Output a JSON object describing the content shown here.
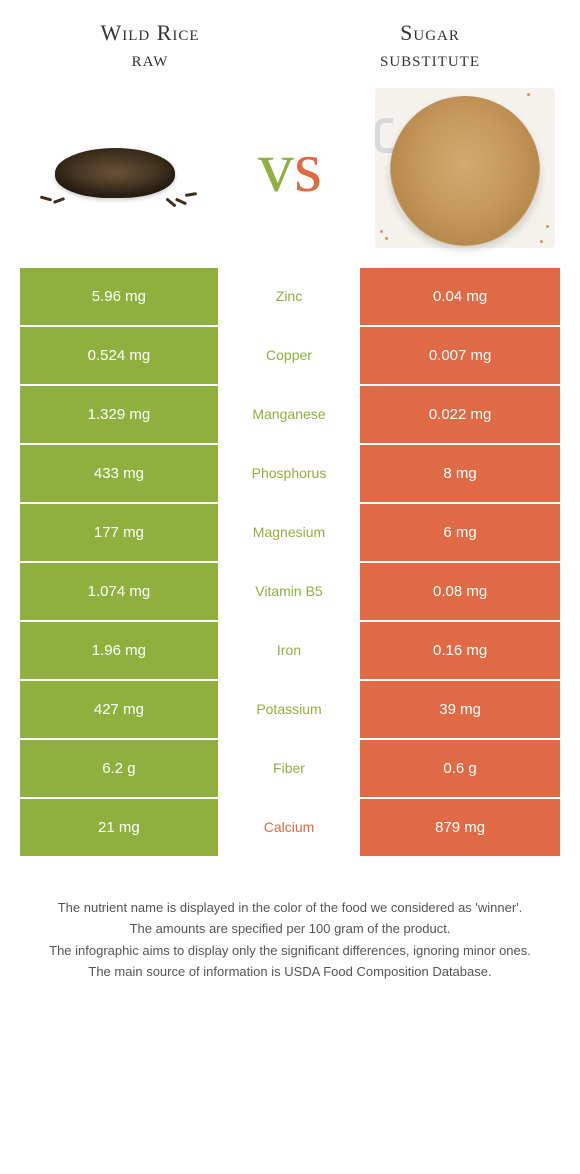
{
  "left_food": {
    "title_line1": "Wild Rice",
    "title_line2": "raw"
  },
  "right_food": {
    "title_line1": "Sugar",
    "title_line2": "substitute"
  },
  "colors": {
    "left_win": "#8fb03e",
    "right_win": "#e06a45",
    "neutral_bg": "#fafafa",
    "neutral_text": "#999999"
  },
  "rows": [
    {
      "nutrient": "Zinc",
      "left": "5.96 mg",
      "right": "0.04 mg",
      "winner": "left"
    },
    {
      "nutrient": "Copper",
      "left": "0.524 mg",
      "right": "0.007 mg",
      "winner": "left"
    },
    {
      "nutrient": "Manganese",
      "left": "1.329 mg",
      "right": "0.022 mg",
      "winner": "left"
    },
    {
      "nutrient": "Phosphorus",
      "left": "433 mg",
      "right": "8 mg",
      "winner": "left"
    },
    {
      "nutrient": "Magnesium",
      "left": "177 mg",
      "right": "6 mg",
      "winner": "left"
    },
    {
      "nutrient": "Vitamin B5",
      "left": "1.074 mg",
      "right": "0.08 mg",
      "winner": "left"
    },
    {
      "nutrient": "Iron",
      "left": "1.96 mg",
      "right": "0.16 mg",
      "winner": "left"
    },
    {
      "nutrient": "Potassium",
      "left": "427 mg",
      "right": "39 mg",
      "winner": "left"
    },
    {
      "nutrient": "Fiber",
      "left": "6.2 g",
      "right": "0.6 g",
      "winner": "left"
    },
    {
      "nutrient": "Calcium",
      "left": "21 mg",
      "right": "879 mg",
      "winner": "right"
    }
  ],
  "footer": {
    "line1": "The nutrient name is displayed in the color of the food we considered as 'winner'.",
    "line2": "The amounts are specified per 100 gram of the product.",
    "line3": "The infographic aims to display only the significant differences, ignoring minor ones.",
    "line4": "The main source of information is USDA Food Composition Database."
  }
}
